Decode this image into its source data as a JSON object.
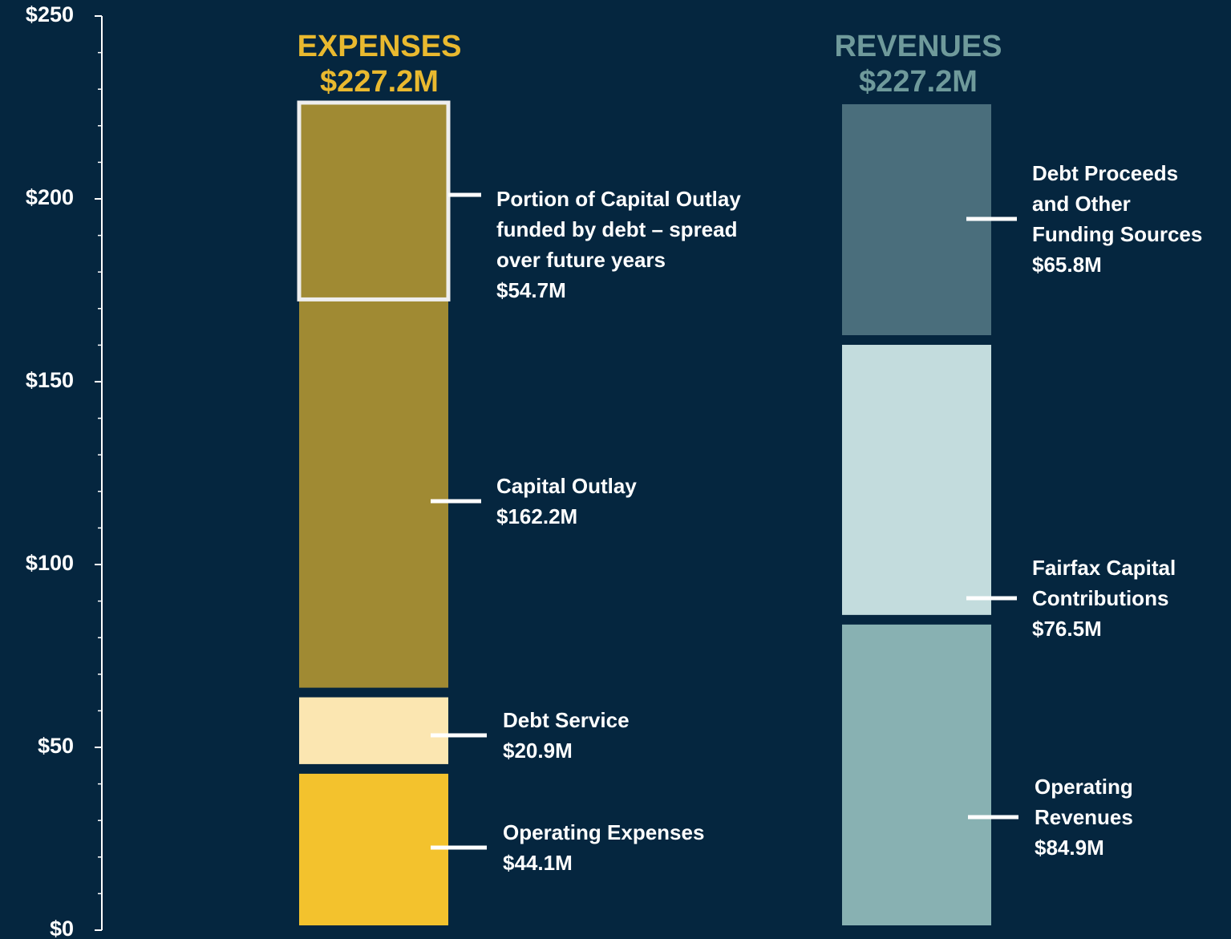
{
  "chart_data": {
    "type": "stacked_bar",
    "ylim": [
      0,
      250
    ],
    "yticks": [
      {
        "value": 0,
        "label": "$0"
      },
      {
        "value": 50,
        "label": "$50"
      },
      {
        "value": 100,
        "label": "$100"
      },
      {
        "value": 150,
        "label": "$150"
      },
      {
        "value": 200,
        "label": "$200"
      },
      {
        "value": 250,
        "label": "$250"
      }
    ],
    "yminorticks": [
      10,
      20,
      30,
      40,
      60,
      70,
      80,
      90,
      110,
      120,
      130,
      140,
      160,
      170,
      180,
      190,
      210,
      220,
      230,
      240
    ],
    "stacks": [
      {
        "name": "EXPENSES",
        "total": 227.2,
        "total_label": "$227.2M",
        "color": "#e9b92f",
        "series": [
          {
            "name": "Operating Expenses",
            "value": 44.1,
            "value_label": "$44.1M",
            "color": "#f3c22d"
          },
          {
            "name": "Debt Service",
            "value": 20.9,
            "value_label": "$20.9M",
            "color": "#fbe6b1"
          },
          {
            "name": "Capital Outlay",
            "value": 162.2,
            "value_label": "$162.2M",
            "color": "#a08a33"
          }
        ]
      },
      {
        "name": "REVENUES",
        "total": 227.2,
        "total_label": "$227.2M",
        "color": "#6f9a9b",
        "series": [
          {
            "name": "Operating\nRevenues",
            "value": 84.9,
            "value_label": "$84.9M",
            "color": "#88b1b2"
          },
          {
            "name": "Fairfax Capital\nContributions",
            "value": 76.5,
            "value_label": "$76.5M",
            "color": "#c3dcdd"
          },
          {
            "name": "Debt Proceeds\nand Other\nFunding Sources",
            "value": 65.8,
            "value_label": "$65.8M",
            "color": "#4a6e7c"
          }
        ]
      }
    ],
    "highlight": {
      "stack": 0,
      "name": "Portion of Capital Outlay\nfunded by debt – spread\nover future years",
      "value": 54.7,
      "value_label": "$54.7M",
      "color": "#eeeeee"
    }
  }
}
